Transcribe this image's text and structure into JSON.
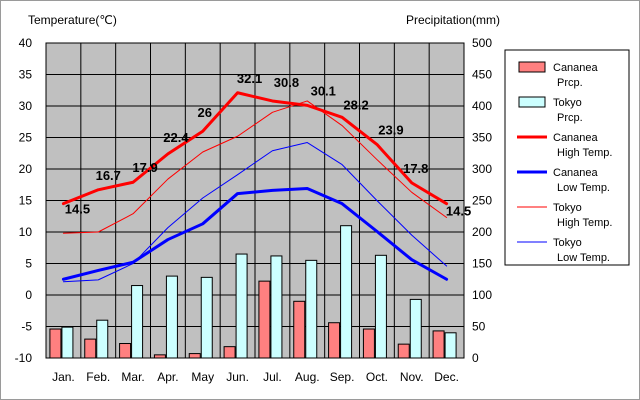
{
  "chart_data": {
    "type": "bar+line",
    "left_axis_title": "Temperature(℃)",
    "right_axis_title": "Precipitation(mm)",
    "categories": [
      "Jan.",
      "Feb.",
      "Mar.",
      "Apr.",
      "May",
      "Jun.",
      "Jul.",
      "Aug.",
      "Sep.",
      "Oct.",
      "Nov.",
      "Dec."
    ],
    "temp_ylim": [
      -10,
      40
    ],
    "temp_ticks": [
      "40",
      "35",
      "30",
      "25",
      "20",
      "15",
      "10",
      "5",
      "0",
      "-5",
      "-10"
    ],
    "prcp_ylim": [
      0,
      500
    ],
    "prcp_ticks": [
      "500",
      "450",
      "400",
      "350",
      "300",
      "250",
      "200",
      "150",
      "100",
      "50",
      "0"
    ],
    "grid": true,
    "legend_position": "right",
    "bar_series": [
      {
        "name": "Cananea\nPrcp.",
        "color": "#ff8080",
        "values": [
          46,
          30,
          23,
          5,
          7,
          18,
          122,
          90,
          56,
          46,
          22,
          43
        ]
      },
      {
        "name": "Tokyo\nPrcp.",
        "color": "#ccffff",
        "values": [
          49,
          60,
          115,
          130,
          128,
          165,
          162,
          155,
          210,
          163,
          93,
          40
        ]
      }
    ],
    "line_series": [
      {
        "name": "Cananea\nHigh Temp.",
        "color": "#ff0000",
        "width": 3,
        "values": [
          14.5,
          16.7,
          17.9,
          22.4,
          26,
          32.1,
          30.8,
          30.1,
          28.2,
          23.9,
          17.8,
          14.5
        ],
        "labels": [
          "14.5",
          "16.7",
          "17.9",
          "22.4",
          "26",
          "32.1",
          "30.8",
          "30.1",
          "28.2",
          "23.9",
          "17.8",
          "14.5"
        ]
      },
      {
        "name": "Cananea\nLow Temp.",
        "color": "#0000ff",
        "width": 3,
        "values": [
          2.5,
          3.9,
          5.2,
          8.8,
          11.3,
          16.1,
          16.6,
          16.9,
          14.5,
          10.1,
          5.6,
          2.5
        ]
      },
      {
        "name": "Tokyo\nHigh Temp.",
        "color": "#ff0000",
        "width": 1,
        "values": [
          9.8,
          10.0,
          12.9,
          18.4,
          22.7,
          25.2,
          29.0,
          30.8,
          26.9,
          21.5,
          16.3,
          12.3
        ]
      },
      {
        "name": "Tokyo\nLow Temp.",
        "color": "#0000ff",
        "width": 1,
        "values": [
          2.1,
          2.4,
          5.0,
          10.7,
          15.4,
          19.1,
          22.9,
          24.2,
          20.7,
          15.0,
          9.5,
          4.6
        ]
      }
    ]
  }
}
